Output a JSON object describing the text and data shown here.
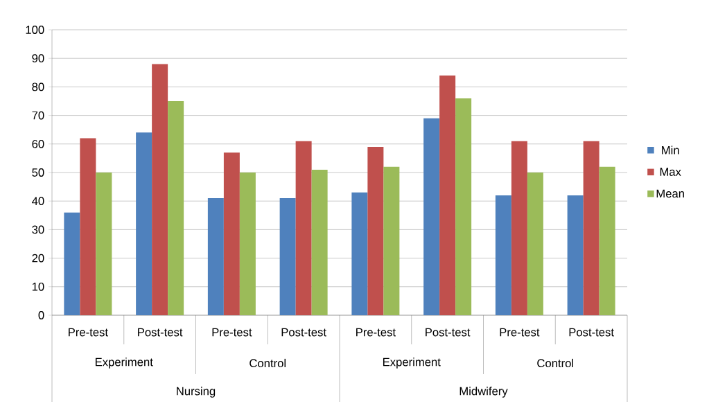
{
  "chart_data": {
    "type": "bar",
    "categories": [
      "Pre-test",
      "Post-test",
      "Pre-test",
      "Post-test",
      "Pre-test",
      "Post-test",
      "Pre-test",
      "Post-test"
    ],
    "series": [
      {
        "name": "Min",
        "color": "#4f81bd",
        "values": [
          36,
          64,
          41,
          41,
          43,
          69,
          42,
          42
        ]
      },
      {
        "name": "Max",
        "color": "#c0504d",
        "values": [
          62,
          88,
          57,
          61,
          59,
          84,
          61,
          61
        ]
      },
      {
        "name": "Mean",
        "color": "#9bbb59",
        "values": [
          50,
          75,
          50,
          51,
          52,
          76,
          50,
          52
        ]
      }
    ],
    "annotations": [
      "Experiment",
      "Control",
      "Experiment",
      "Control",
      "Nursing",
      "Midwifery"
    ],
    "ylim": [
      0,
      100
    ],
    "yticks": [
      0,
      10,
      20,
      30,
      40,
      50,
      60,
      70,
      80,
      90,
      100
    ],
    "grid": "y",
    "legend": "right"
  }
}
